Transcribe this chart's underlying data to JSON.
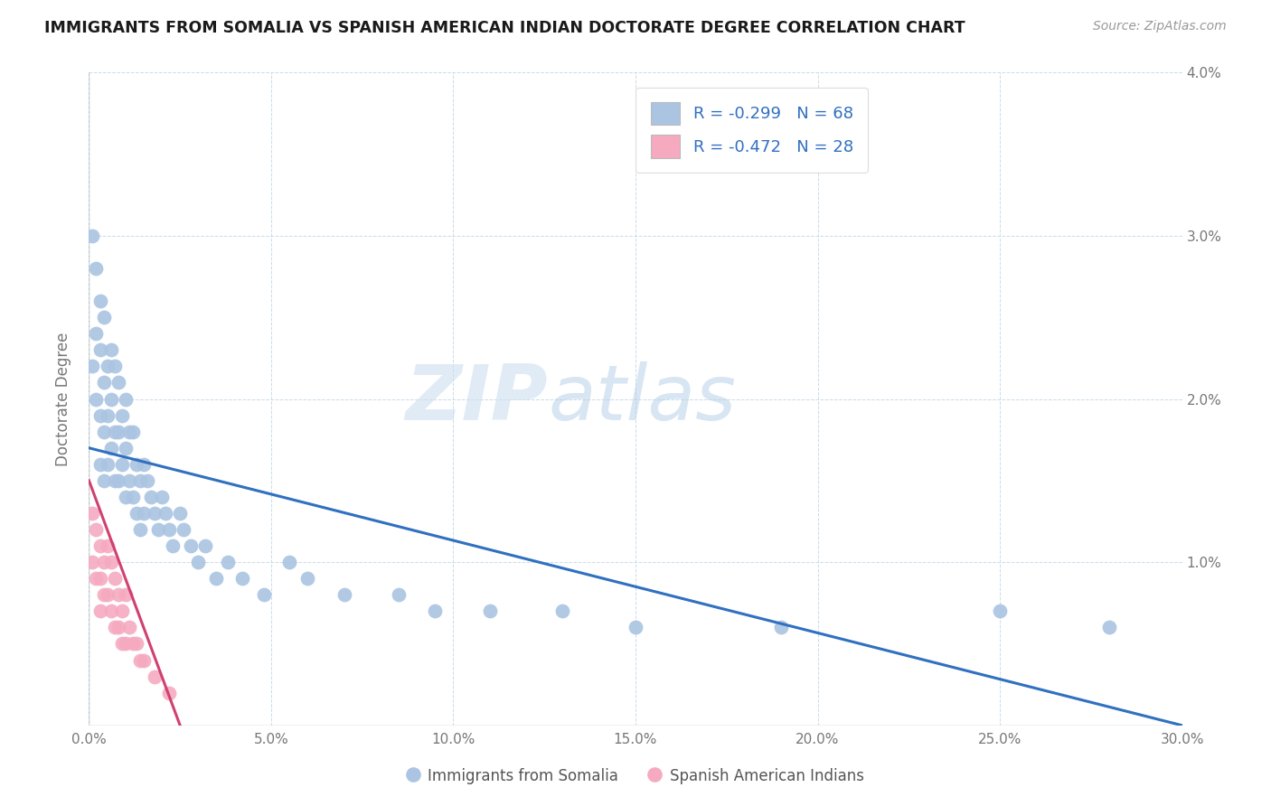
{
  "title": "IMMIGRANTS FROM SOMALIA VS SPANISH AMERICAN INDIAN DOCTORATE DEGREE CORRELATION CHART",
  "source": "Source: ZipAtlas.com",
  "ylabel": "Doctorate Degree",
  "xlim": [
    0.0,
    0.3
  ],
  "ylim": [
    0.0,
    0.04
  ],
  "xtick_vals": [
    0.0,
    0.05,
    0.1,
    0.15,
    0.2,
    0.25,
    0.3
  ],
  "xtick_labels": [
    "0.0%",
    "5.0%",
    "10.0%",
    "15.0%",
    "20.0%",
    "25.0%",
    "30.0%"
  ],
  "ytick_vals": [
    0.0,
    0.01,
    0.02,
    0.03,
    0.04
  ],
  "ytick_labels": [
    "",
    "1.0%",
    "2.0%",
    "3.0%",
    "4.0%"
  ],
  "blue_R": -0.299,
  "blue_N": 68,
  "pink_R": -0.472,
  "pink_N": 28,
  "blue_color": "#aac4e2",
  "pink_color": "#f5aac0",
  "blue_line_color": "#3070c0",
  "pink_line_color": "#d04070",
  "watermark_zip": "ZIP",
  "watermark_atlas": "atlas",
  "background_color": "#ffffff",
  "legend_label_blue": "Immigrants from Somalia",
  "legend_label_pink": "Spanish American Indians",
  "blue_line_x0": 0.0,
  "blue_line_y0": 0.017,
  "blue_line_x1": 0.3,
  "blue_line_y1": 0.0,
  "pink_line_x0": 0.0,
  "pink_line_y0": 0.015,
  "pink_line_x1": 0.025,
  "pink_line_y1": 0.0,
  "blue_x": [
    0.001,
    0.001,
    0.002,
    0.002,
    0.002,
    0.003,
    0.003,
    0.003,
    0.003,
    0.004,
    0.004,
    0.004,
    0.004,
    0.005,
    0.005,
    0.005,
    0.006,
    0.006,
    0.006,
    0.007,
    0.007,
    0.007,
    0.008,
    0.008,
    0.008,
    0.009,
    0.009,
    0.01,
    0.01,
    0.01,
    0.011,
    0.011,
    0.012,
    0.012,
    0.013,
    0.013,
    0.014,
    0.014,
    0.015,
    0.015,
    0.016,
    0.017,
    0.018,
    0.019,
    0.02,
    0.021,
    0.022,
    0.023,
    0.025,
    0.026,
    0.028,
    0.03,
    0.032,
    0.035,
    0.038,
    0.042,
    0.048,
    0.055,
    0.06,
    0.07,
    0.085,
    0.095,
    0.11,
    0.13,
    0.15,
    0.19,
    0.25,
    0.28
  ],
  "blue_y": [
    0.03,
    0.022,
    0.028,
    0.024,
    0.02,
    0.026,
    0.023,
    0.019,
    0.016,
    0.025,
    0.021,
    0.018,
    0.015,
    0.022,
    0.019,
    0.016,
    0.023,
    0.02,
    0.017,
    0.022,
    0.018,
    0.015,
    0.021,
    0.018,
    0.015,
    0.019,
    0.016,
    0.02,
    0.017,
    0.014,
    0.018,
    0.015,
    0.018,
    0.014,
    0.016,
    0.013,
    0.015,
    0.012,
    0.016,
    0.013,
    0.015,
    0.014,
    0.013,
    0.012,
    0.014,
    0.013,
    0.012,
    0.011,
    0.013,
    0.012,
    0.011,
    0.01,
    0.011,
    0.009,
    0.01,
    0.009,
    0.008,
    0.01,
    0.009,
    0.008,
    0.008,
    0.007,
    0.007,
    0.007,
    0.006,
    0.006,
    0.007,
    0.006
  ],
  "pink_x": [
    0.001,
    0.001,
    0.002,
    0.002,
    0.003,
    0.003,
    0.003,
    0.004,
    0.004,
    0.005,
    0.005,
    0.006,
    0.006,
    0.007,
    0.007,
    0.008,
    0.008,
    0.009,
    0.009,
    0.01,
    0.01,
    0.011,
    0.012,
    0.013,
    0.014,
    0.015,
    0.018,
    0.022
  ],
  "pink_y": [
    0.013,
    0.01,
    0.012,
    0.009,
    0.011,
    0.009,
    0.007,
    0.01,
    0.008,
    0.011,
    0.008,
    0.01,
    0.007,
    0.009,
    0.006,
    0.008,
    0.006,
    0.007,
    0.005,
    0.008,
    0.005,
    0.006,
    0.005,
    0.005,
    0.004,
    0.004,
    0.003,
    0.002
  ]
}
